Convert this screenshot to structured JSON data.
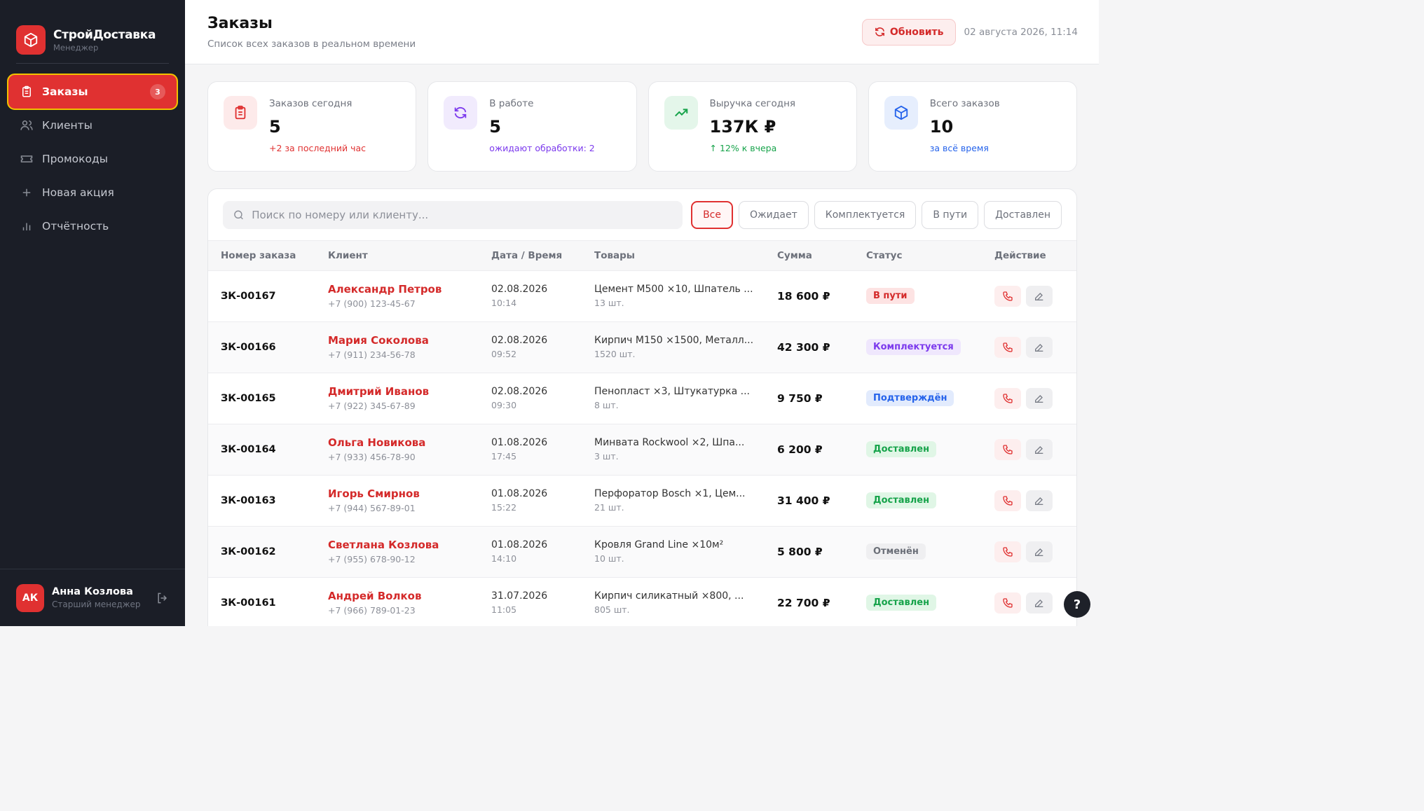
{
  "brand": {
    "name": "СтройДоставка",
    "role": "Менеджер"
  },
  "nav": [
    {
      "label": "Заказы",
      "badge": "3",
      "active": true,
      "icon": "clipboard-icon"
    },
    {
      "label": "Клиенты",
      "icon": "users-icon"
    },
    {
      "label": "Промокоды",
      "icon": "ticket-icon"
    },
    {
      "label": "Новая акция",
      "icon": "plus-icon"
    },
    {
      "label": "Отчётность",
      "icon": "bar-chart-icon"
    }
  ],
  "user": {
    "initials": "АК",
    "name": "Анна Козлова",
    "role": "Старший менеджер"
  },
  "header": {
    "title": "Заказы",
    "subtitle": "Список всех заказов в реальном времени",
    "refresh_label": "Обновить",
    "datetime": "02 августа 2026, 11:14"
  },
  "stats": [
    {
      "label": "Заказов сегодня",
      "value": "5",
      "note": "+2 за последний час",
      "color": "#e03131",
      "icon": "clipboard-icon"
    },
    {
      "label": "В работе",
      "value": "5",
      "note": "ожидают обработки: 2",
      "color": "#7c3aed",
      "icon": "refresh-icon"
    },
    {
      "label": "Выручка сегодня",
      "value": "137К ₽",
      "note": "↑ 12% к вчера",
      "color": "#16a34a",
      "icon": "trending-up-icon"
    },
    {
      "label": "Всего заказов",
      "value": "10",
      "note": "за всё время",
      "color": "#2563eb",
      "icon": "box-icon"
    }
  ],
  "search": {
    "placeholder": "Поиск по номеру или клиенту..."
  },
  "filters": [
    {
      "label": "Все",
      "active": true
    },
    {
      "label": "Ожидает"
    },
    {
      "label": "Комплектуется"
    },
    {
      "label": "В пути"
    },
    {
      "label": "Доставлен"
    }
  ],
  "table": {
    "headers": [
      "Номер заказа",
      "Клиент",
      "Дата / Время",
      "Товары",
      "Сумма",
      "Статус",
      "Действие"
    ],
    "rows": [
      {
        "id": "ЗК-00167",
        "client": "Александр Петров",
        "phone": "+7 (900) 123-45-67",
        "date": "02.08.2026",
        "time": "10:14",
        "goods": "Цемент М500 ×10, Шпатель ...",
        "qty": "13 шт.",
        "sum": "18 600 ₽",
        "status": "В пути",
        "status_color": "#d42a2a",
        "status_bg": "#fde3e3"
      },
      {
        "id": "ЗК-00166",
        "client": "Мария Соколова",
        "phone": "+7 (911) 234-56-78",
        "date": "02.08.2026",
        "time": "09:52",
        "goods": "Кирпич М150 ×1500, Металл...",
        "qty": "1520 шт.",
        "sum": "42 300 ₽",
        "status": "Комплектуется",
        "status_color": "#7c3aed",
        "status_bg": "#efe7fd"
      },
      {
        "id": "ЗК-00165",
        "client": "Дмитрий Иванов",
        "phone": "+7 (922) 345-67-89",
        "date": "02.08.2026",
        "time": "09:30",
        "goods": "Пенопласт ×3, Штукатурка ...",
        "qty": "8 шт.",
        "sum": "9 750 ₽",
        "status": "Подтверждён",
        "status_color": "#2563eb",
        "status_bg": "#e2ebfd"
      },
      {
        "id": "ЗК-00164",
        "client": "Ольга Новикова",
        "phone": "+7 (933) 456-78-90",
        "date": "01.08.2026",
        "time": "17:45",
        "goods": "Минвата Rockwool ×2, Шпа...",
        "qty": "3 шт.",
        "sum": "6 200 ₽",
        "status": "Доставлен",
        "status_color": "#16a34a",
        "status_bg": "#e0f6e6"
      },
      {
        "id": "ЗК-00163",
        "client": "Игорь Смирнов",
        "phone": "+7 (944) 567-89-01",
        "date": "01.08.2026",
        "time": "15:22",
        "goods": "Перфоратор Bosch ×1, Цем...",
        "qty": "21 шт.",
        "sum": "31 400 ₽",
        "status": "Доставлен",
        "status_color": "#16a34a",
        "status_bg": "#e0f6e6"
      },
      {
        "id": "ЗК-00162",
        "client": "Светлана Козлова",
        "phone": "+7 (955) 678-90-12",
        "date": "01.08.2026",
        "time": "14:10",
        "goods": "Кровля Grand Line ×10м²",
        "qty": "10 шт.",
        "sum": "5 800 ₽",
        "status": "Отменён",
        "status_color": "#6b6f78",
        "status_bg": "#efeff1"
      },
      {
        "id": "ЗК-00161",
        "client": "Андрей Волков",
        "phone": "+7 (966) 789-01-23",
        "date": "31.07.2026",
        "time": "11:05",
        "goods": "Кирпич силикатный ×800, ...",
        "qty": "805 шт.",
        "sum": "22 700 ₽",
        "status": "Доставлен",
        "status_color": "#16a34a",
        "status_bg": "#e0f6e6"
      }
    ]
  },
  "help_label": "?"
}
